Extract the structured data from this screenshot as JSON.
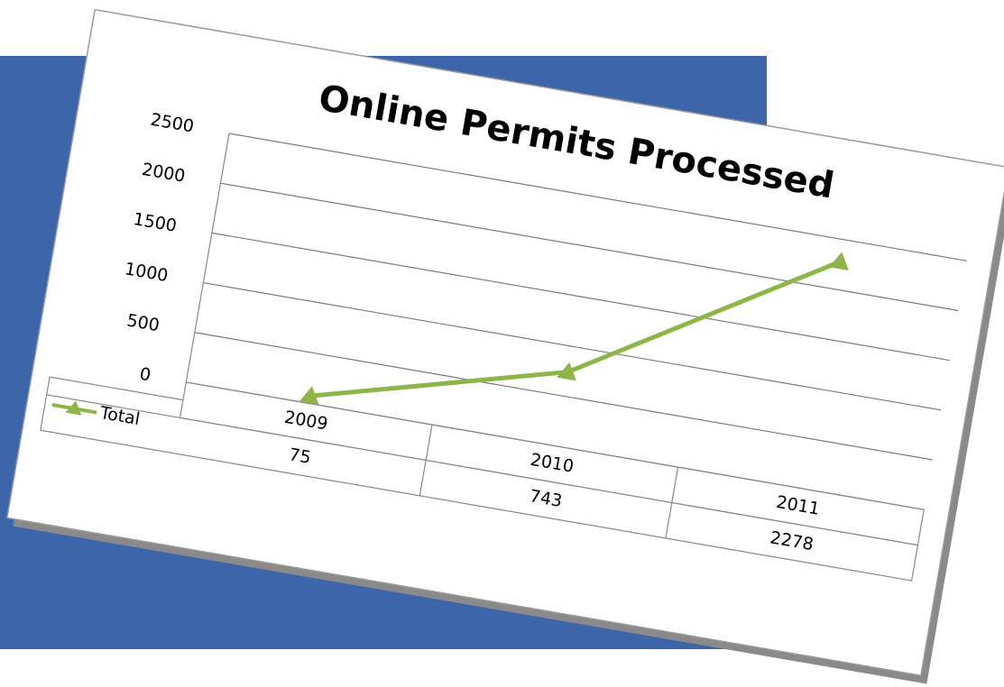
{
  "chart_data": {
    "type": "line",
    "title": "Online Permits Processed",
    "categories": [
      "2009",
      "2010",
      "2011"
    ],
    "series": [
      {
        "name": "Total",
        "color": "#8db548",
        "values": [
          75,
          743,
          2278
        ]
      }
    ],
    "ylim": [
      0,
      2500
    ],
    "yticks": [
      0,
      500,
      1000,
      1500,
      2000,
      2500
    ],
    "grid": true,
    "data_table": true
  }
}
